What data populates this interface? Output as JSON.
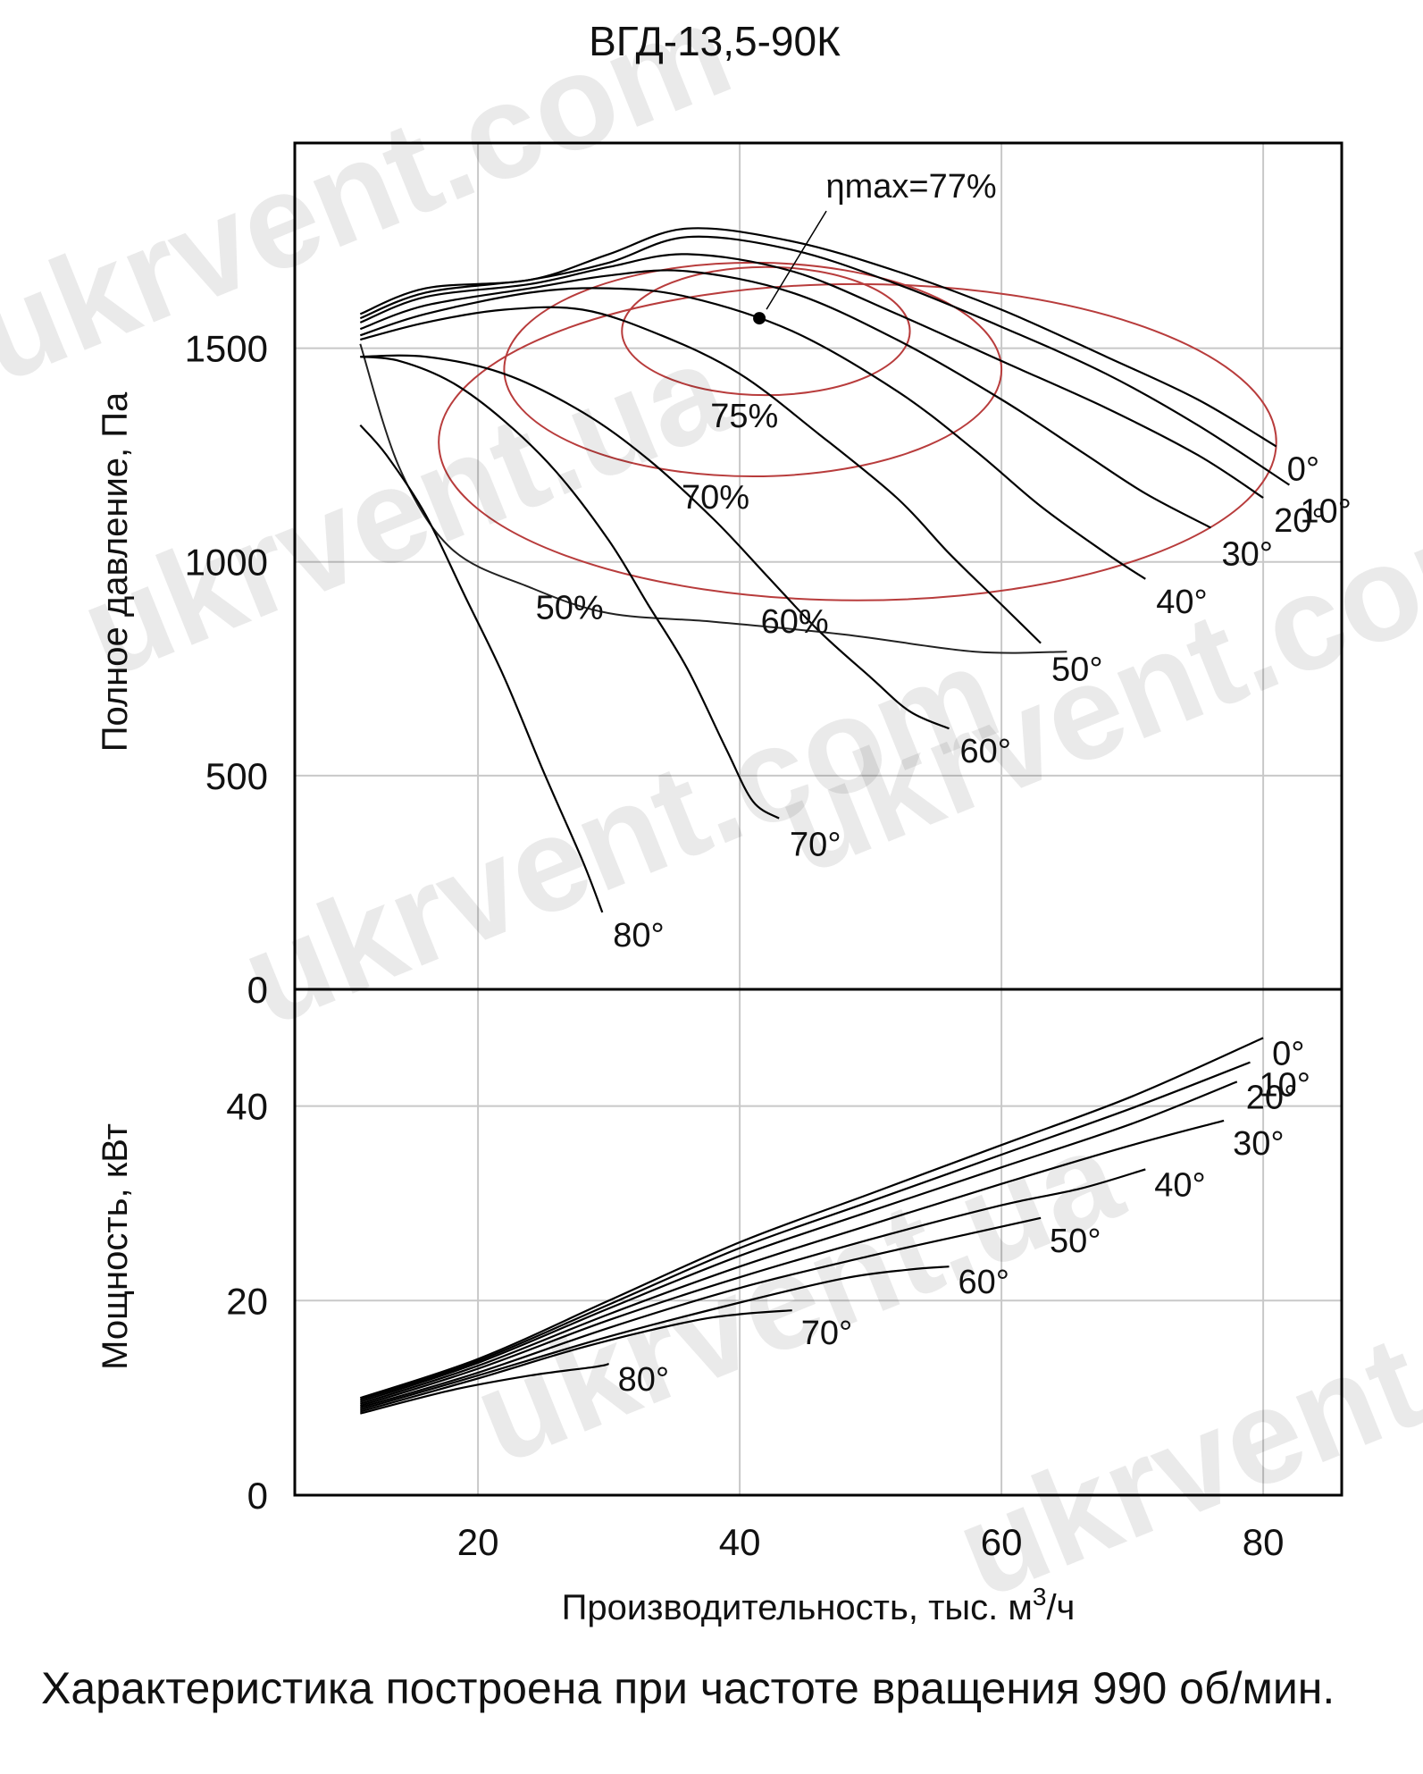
{
  "chart_data": {
    "type": "line",
    "title": "ВГД-13,5-90К",
    "xlabel": "Производительность, тыс. м³/ч",
    "x_ticks": [
      "20",
      "40",
      "60",
      "80"
    ],
    "xlim": [
      6,
      86
    ],
    "grid": true,
    "top_panel": {
      "ylabel": "Полное давление, Па",
      "ylim": [
        0,
        1980
      ],
      "y_ticks": [
        "0",
        "500",
        "1000",
        "1500"
      ],
      "eta_max_label": "ηmax=77%",
      "eta_max_point": [
        41.5,
        1570
      ],
      "series": [
        {
          "name": "0°",
          "x": [
            11,
            16,
            24,
            30,
            36,
            44,
            52,
            60,
            68,
            75,
            81
          ],
          "y": [
            1580,
            1640,
            1660,
            1720,
            1780,
            1750,
            1680,
            1590,
            1480,
            1380,
            1270
          ]
        },
        {
          "name": "10°",
          "x": [
            11,
            16,
            24,
            30,
            36,
            44,
            52,
            60,
            68,
            75,
            82
          ],
          "y": [
            1570,
            1630,
            1660,
            1700,
            1760,
            1730,
            1650,
            1550,
            1440,
            1320,
            1180
          ]
        },
        {
          "name": "20°",
          "x": [
            11,
            16,
            24,
            30,
            36,
            44,
            52,
            60,
            68,
            75,
            80
          ],
          "y": [
            1560,
            1620,
            1650,
            1690,
            1720,
            1680,
            1580,
            1470,
            1360,
            1250,
            1150
          ]
        },
        {
          "name": "30°",
          "x": [
            11,
            16,
            24,
            30,
            36,
            44,
            52,
            60,
            66,
            71,
            76
          ],
          "y": [
            1545,
            1600,
            1640,
            1670,
            1680,
            1630,
            1520,
            1380,
            1260,
            1160,
            1080
          ]
        },
        {
          "name": "40°",
          "x": [
            11,
            16,
            24,
            30,
            36,
            44,
            52,
            58,
            63,
            68,
            71
          ],
          "y": [
            1530,
            1580,
            1630,
            1640,
            1620,
            1540,
            1400,
            1260,
            1130,
            1020,
            960
          ]
        },
        {
          "name": "50°",
          "x": [
            11,
            16,
            22,
            28,
            34,
            40,
            46,
            52,
            56,
            60,
            63
          ],
          "y": [
            1520,
            1560,
            1590,
            1590,
            1530,
            1440,
            1300,
            1150,
            1020,
            900,
            810
          ]
        },
        {
          "name": "60°",
          "x": [
            11,
            16,
            22,
            28,
            33,
            38,
            42,
            46,
            50,
            53,
            56
          ],
          "y": [
            1480,
            1480,
            1440,
            1350,
            1240,
            1100,
            970,
            840,
            730,
            650,
            610
          ]
        },
        {
          "name": "70°",
          "x": [
            11,
            14,
            18,
            22,
            26,
            30,
            33,
            36,
            39,
            41,
            43
          ],
          "y": [
            1480,
            1470,
            1420,
            1330,
            1210,
            1050,
            900,
            750,
            560,
            440,
            400
          ]
        },
        {
          "name": "80°",
          "x": [
            11,
            13,
            16,
            19,
            22,
            25,
            28,
            29.5
          ],
          "y": [
            1320,
            1250,
            1110,
            920,
            730,
            510,
            300,
            180
          ]
        }
      ],
      "efficiency_contours": [
        {
          "label": "75%",
          "cx": 42,
          "cy": 1540,
          "rx": 11,
          "ry": 150
        },
        {
          "label": "70%",
          "cx": 41,
          "cy": 1450,
          "rx": 19,
          "ry": 250
        },
        {
          "label": "60%",
          "cx": 49,
          "cy": 1280,
          "rx": 32,
          "ry": 370
        },
        {
          "label": "50%",
          "x": [
            11,
            14,
            18,
            24,
            30,
            38,
            48,
            58,
            65
          ],
          "y": [
            1510,
            1220,
            1030,
            940,
            880,
            860,
            830,
            790,
            790
          ]
        }
      ]
    },
    "bottom_panel": {
      "ylabel": "Мощность, кВт",
      "ylim": [
        0,
        52
      ],
      "y_ticks": [
        "0",
        "20",
        "40"
      ],
      "series": [
        {
          "name": "0°",
          "x": [
            11,
            20,
            30,
            40,
            50,
            60,
            70,
            80
          ],
          "y": [
            10,
            14,
            20,
            26,
            31,
            36,
            41,
            47
          ]
        },
        {
          "name": "10°",
          "x": [
            11,
            20,
            30,
            40,
            50,
            60,
            70,
            79
          ],
          "y": [
            9.8,
            13.8,
            19.6,
            25.4,
            30.2,
            35,
            39.8,
            44.5
          ]
        },
        {
          "name": "20°",
          "x": [
            11,
            20,
            30,
            40,
            50,
            60,
            70,
            78
          ],
          "y": [
            9.6,
            13.6,
            19.2,
            24.6,
            29.2,
            33.7,
            38.2,
            42.5
          ]
        },
        {
          "name": "30°",
          "x": [
            11,
            20,
            30,
            40,
            50,
            60,
            70,
            77
          ],
          "y": [
            9.4,
            13.3,
            18.6,
            23.5,
            27.8,
            32,
            36,
            38.5
          ]
        },
        {
          "name": "40°",
          "x": [
            11,
            20,
            30,
            40,
            50,
            60,
            66,
            71
          ],
          "y": [
            9.2,
            13,
            18,
            22.4,
            26.3,
            29.8,
            31.5,
            33.5
          ]
        },
        {
          "name": "50°",
          "x": [
            11,
            20,
            30,
            40,
            50,
            58,
            63
          ],
          "y": [
            9,
            12.6,
            17.2,
            21.3,
            24.6,
            27,
            28.5
          ]
        },
        {
          "name": "60°",
          "x": [
            11,
            20,
            30,
            40,
            48,
            53,
            56
          ],
          "y": [
            8.8,
            12.3,
            16.3,
            19.8,
            22.3,
            23.2,
            23.5
          ]
        },
        {
          "name": "70°",
          "x": [
            11,
            20,
            28,
            36,
            40,
            44
          ],
          "y": [
            8.6,
            12,
            15.2,
            17.8,
            18.6,
            19
          ]
        },
        {
          "name": "80°",
          "x": [
            11,
            18,
            24,
            29,
            30
          ],
          "y": [
            8.4,
            10.8,
            12.3,
            13.2,
            13.5
          ]
        }
      ]
    },
    "watermark": "ukrvent.com ukrvent.ua"
  },
  "caption": "Характеристика построена при частоте вращения 990 об/мин."
}
